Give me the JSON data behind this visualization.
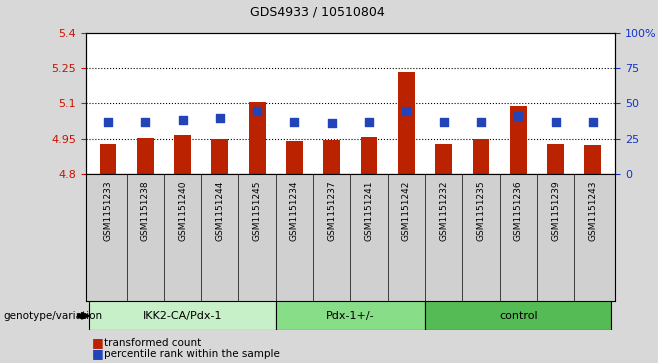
{
  "title": "GDS4933 / 10510804",
  "samples": [
    "GSM1151233",
    "GSM1151238",
    "GSM1151240",
    "GSM1151244",
    "GSM1151245",
    "GSM1151234",
    "GSM1151237",
    "GSM1151241",
    "GSM1151242",
    "GSM1151232",
    "GSM1151235",
    "GSM1151236",
    "GSM1151239",
    "GSM1151243"
  ],
  "transformed_counts": [
    4.93,
    4.955,
    4.965,
    4.948,
    5.105,
    4.942,
    4.947,
    4.958,
    5.235,
    4.928,
    4.95,
    5.088,
    4.927,
    4.924
  ],
  "percentile_ranks": [
    37,
    37,
    38,
    40,
    45,
    37,
    36,
    37,
    45,
    37,
    37,
    41,
    37,
    37
  ],
  "groups": [
    {
      "label": "IKK2-CA/Pdx-1",
      "start": 0,
      "end": 4,
      "color": "#c8f0c8"
    },
    {
      "label": "Pdx-1+/-",
      "start": 5,
      "end": 8,
      "color": "#88dd88"
    },
    {
      "label": "control",
      "start": 9,
      "end": 13,
      "color": "#55bb55"
    }
  ],
  "ylim_left": [
    4.8,
    5.4
  ],
  "ylim_right": [
    0,
    100
  ],
  "yticks_left": [
    4.8,
    4.95,
    5.1,
    5.25,
    5.4
  ],
  "ytick_labels_left": [
    "4.8",
    "4.95",
    "5.1",
    "5.25",
    "5.4"
  ],
  "yticks_right": [
    0,
    25,
    50,
    75,
    100
  ],
  "ytick_labels_right": [
    "0",
    "25",
    "50",
    "75",
    "100%"
  ],
  "grid_lines": [
    4.95,
    5.1,
    5.25
  ],
  "bar_color": "#bb2200",
  "dot_color": "#2244bb",
  "bar_width": 0.45,
  "dot_size": 30,
  "background_color": "#d8d8d8",
  "plot_bg_color": "#ffffff",
  "tick_bg_color": "#d0d0d0",
  "left_ylabel_color": "#cc1100",
  "right_ylabel_color": "#1133cc",
  "legend_items": [
    "transformed count",
    "percentile rank within the sample"
  ],
  "genotype_label": "genotype/variation"
}
